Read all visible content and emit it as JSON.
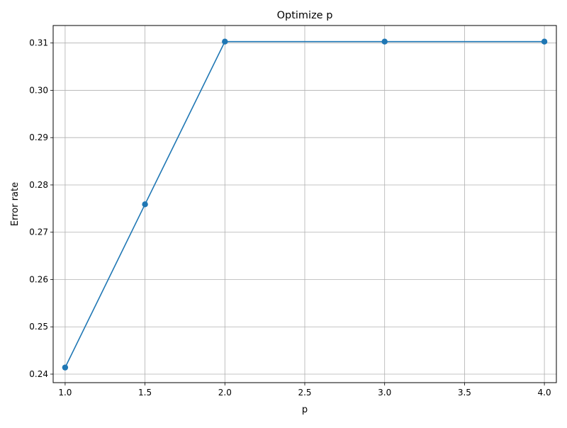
{
  "chart_data": {
    "type": "line",
    "title": "Optimize p",
    "xlabel": "p",
    "ylabel": "Error rate",
    "x": [
      1.0,
      1.5,
      2.0,
      3.0,
      4.0
    ],
    "series": [
      {
        "name": "",
        "values": [
          0.2414,
          0.2759,
          0.3103,
          0.3103,
          0.3103
        ],
        "color": "#1f77b4",
        "marker": "circle"
      }
    ],
    "xlim": [
      0.925,
      4.075
    ],
    "ylim": [
      0.2382,
      0.3137
    ],
    "xticks": [
      1.0,
      1.5,
      2.0,
      2.5,
      3.0,
      3.5,
      4.0
    ],
    "xtick_labels": [
      "1.0",
      "1.5",
      "2.0",
      "2.5",
      "3.0",
      "3.5",
      "4.0"
    ],
    "yticks": [
      0.24,
      0.25,
      0.26,
      0.27,
      0.28,
      0.29,
      0.3,
      0.31
    ],
    "ytick_labels": [
      "0.24",
      "0.25",
      "0.26",
      "0.27",
      "0.28",
      "0.29",
      "0.30",
      "0.31"
    ],
    "grid": true,
    "grid_color": "#b0b0b0",
    "legend": "none"
  }
}
